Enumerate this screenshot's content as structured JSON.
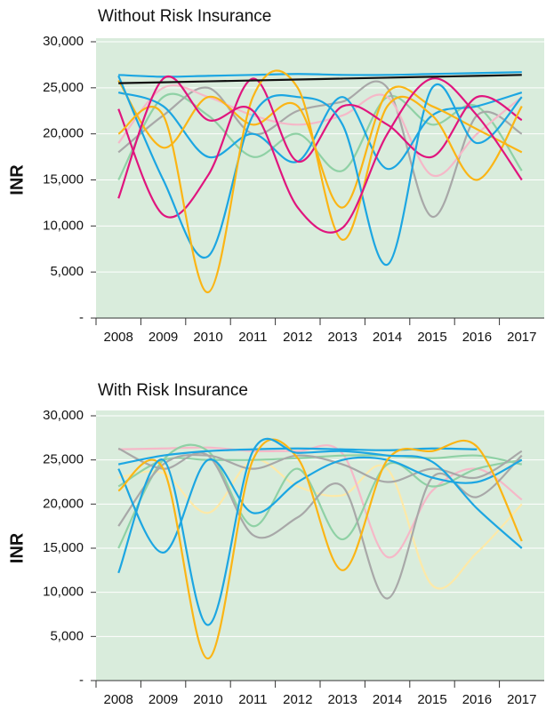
{
  "chart_data": [
    {
      "type": "line",
      "title": "Without Risk Insurance",
      "y_label": "INR",
      "categories": [
        "2008",
        "2009",
        "2010",
        "2011",
        "2012",
        "2013",
        "2014",
        "2015",
        "2016",
        "2017"
      ],
      "ylim": [
        0,
        30000
      ],
      "yticks": [
        {
          "value": 0,
          "label": "-"
        },
        {
          "value": 5000,
          "label": "5,000"
        },
        {
          "value": 10000,
          "label": "10,000"
        },
        {
          "value": 15000,
          "label": "15,000"
        },
        {
          "value": 20000,
          "label": "20,000"
        },
        {
          "value": 25000,
          "label": "25,000"
        },
        {
          "value": 30000,
          "label": "30,000"
        }
      ],
      "grid": true,
      "series": [
        {
          "color": "#1ca6e2",
          "values": [
            26400,
            26200,
            26300,
            26400,
            26500,
            26400,
            26400,
            26500,
            26600,
            26700
          ]
        },
        {
          "color": "#8fd1a5",
          "values": [
            15000,
            24000,
            22000,
            17500,
            20000,
            16000,
            24000,
            21000,
            23000,
            16000
          ]
        },
        {
          "color": "#a8a8a8",
          "values": [
            18000,
            22000,
            25000,
            20000,
            22500,
            23500,
            25000,
            11000,
            22000,
            20000
          ]
        },
        {
          "color": "#f5b8c8",
          "values": [
            19000,
            25000,
            24000,
            22000,
            21000,
            22000,
            24000,
            15500,
            20000,
            24000
          ]
        },
        {
          "color": "#1ca6e2",
          "values": [
            24500,
            23000,
            17500,
            20000,
            17000,
            24000,
            16200,
            22000,
            23000,
            24500
          ]
        },
        {
          "color": "#fbb515",
          "values": [
            25800,
            18500,
            24000,
            21000,
            23000,
            12000,
            24500,
            23000,
            20500,
            18000
          ]
        },
        {
          "color": "#e0157e",
          "values": [
            22700,
            11200,
            15500,
            26000,
            17000,
            23000,
            21000,
            17500,
            24000,
            21500
          ]
        },
        {
          "color": "#1ca6e2",
          "values": [
            26300,
            15000,
            6700,
            22000,
            24000,
            21000,
            5800,
            25000,
            19000,
            24000
          ]
        },
        {
          "color": "#fbb515",
          "values": [
            20000,
            22000,
            2800,
            24000,
            25000,
            8500,
            23000,
            22000,
            15000,
            23000
          ]
        },
        {
          "color": "#e0157e",
          "values": [
            13000,
            26000,
            21500,
            22500,
            12000,
            9800,
            20000,
            26000,
            22000,
            15000
          ]
        },
        {
          "color": "#111111",
          "values": [
            25500,
            25600,
            25700,
            25800,
            25900,
            26000,
            26100,
            26200,
            26300,
            26400
          ]
        }
      ]
    },
    {
      "type": "line",
      "title": "With Risk Insurance",
      "y_label": "INR",
      "categories": [
        "2008",
        "2009",
        "2010",
        "2011",
        "2012",
        "2013",
        "2014",
        "2015",
        "2016",
        "2017"
      ],
      "ylim": [
        0,
        30000
      ],
      "yticks": [
        {
          "value": 0,
          "label": "-"
        },
        {
          "value": 5000,
          "label": "5,000"
        },
        {
          "value": 10000,
          "label": "10,000"
        },
        {
          "value": 15000,
          "label": "15,000"
        },
        {
          "value": 20000,
          "label": "20,000"
        },
        {
          "value": 25000,
          "label": "25,000"
        },
        {
          "value": 30000,
          "label": "30,000"
        }
      ],
      "grid": true,
      "series": [
        {
          "color": "#fde9a8",
          "values": [
            23000,
            23500,
            19000,
            25000,
            22000,
            21000,
            24000,
            10800,
            14500,
            20000
          ]
        },
        {
          "color": "#f5b8c8",
          "values": [
            26200,
            26300,
            26400,
            26000,
            26000,
            25700,
            14000,
            21500,
            24000,
            20500
          ]
        },
        {
          "color": "#8fd1a5",
          "values": [
            22000,
            25000,
            25000,
            25000,
            25200,
            25500,
            25500,
            25200,
            25500,
            24500
          ]
        },
        {
          "color": "#8fd1a5",
          "values": [
            15000,
            25000,
            26000,
            17500,
            24000,
            16000,
            24500,
            22000,
            24000,
            25000
          ]
        },
        {
          "color": "#a8a8a8",
          "values": [
            17500,
            24500,
            25500,
            24000,
            25500,
            24500,
            22500,
            24000,
            23000,
            26000
          ]
        },
        {
          "color": "#a8a8a8",
          "values": [
            26300,
            24000,
            25500,
            16500,
            18500,
            22000,
            9300,
            23000,
            20800,
            25500
          ]
        },
        {
          "color": "#1ca6e2",
          "values": [
            24000,
            14500,
            25000,
            19000,
            22500,
            25000,
            25000,
            23000,
            22500,
            25000
          ]
        },
        {
          "color": "#1ca6e2",
          "values": [
            24500,
            25500,
            26000,
            26200,
            26300,
            26200,
            26100,
            26300,
            26200,
            null
          ]
        },
        {
          "color": "#fbb515",
          "values": [
            21500,
            24000,
            2500,
            25000,
            25200,
            12500,
            25000,
            26000,
            26500,
            15800
          ]
        },
        {
          "color": "#1ca6e2",
          "values": [
            12200,
            25000,
            6300,
            26000,
            25800,
            26000,
            25500,
            24800,
            19500,
            15000
          ]
        }
      ]
    }
  ]
}
